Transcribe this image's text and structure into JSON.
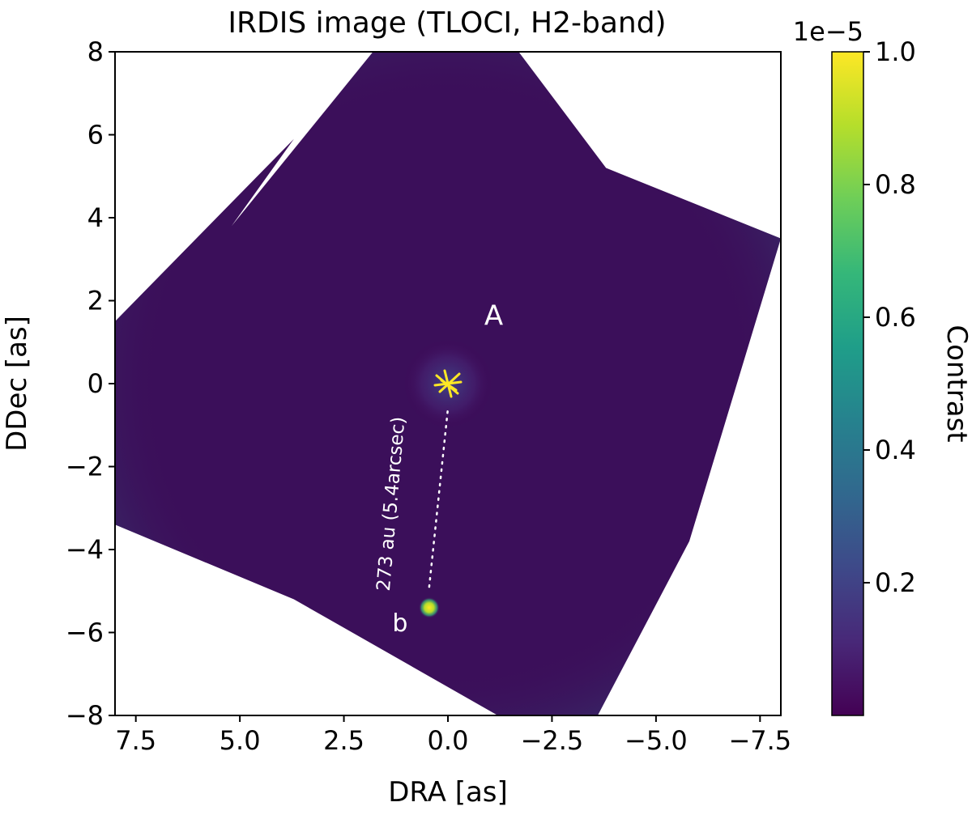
{
  "chart_data": {
    "type": "heatmap",
    "title": "IRDIS image (TLOCI, H2-band)",
    "xlabel": "DRA [as]",
    "ylabel": "DDec [as]",
    "xlim": [
      8,
      -8
    ],
    "ylim": [
      -8,
      8
    ],
    "x_ticks": [
      7.5,
      5.0,
      2.5,
      0.0,
      -2.5,
      -5.0,
      -7.5
    ],
    "x_tick_labels": [
      "7.5",
      "5.0",
      "2.5",
      "0.0",
      "−2.5",
      "−5.0",
      "−7.5"
    ],
    "y_ticks": [
      8,
      6,
      4,
      2,
      0,
      -2,
      -4,
      -6,
      -8
    ],
    "y_tick_labels": [
      "8",
      "6",
      "4",
      "2",
      "0",
      "−2",
      "−4",
      "−6",
      "−8"
    ],
    "field_outline": [
      [
        8,
        1.5
      ],
      [
        3.7,
        5.9
      ],
      [
        5.2,
        3.8
      ],
      [
        1.8,
        8
      ],
      [
        -1.7,
        8
      ],
      [
        -3.8,
        5.2
      ],
      [
        -8,
        3.5
      ],
      [
        -5.8,
        -3.8
      ],
      [
        -3.6,
        -8
      ],
      [
        -1.2,
        -8
      ],
      [
        3.7,
        -5.2
      ],
      [
        8,
        -3.4
      ]
    ],
    "colormap": "viridis",
    "colorbar": {
      "label": "Contrast",
      "scale_label": "1e−5",
      "range": [
        0.0,
        1.0
      ],
      "ticks": [
        1.0,
        0.8,
        0.6,
        0.4,
        0.2
      ],
      "tick_labels": [
        "1.0",
        "0.8",
        "0.6",
        "0.4",
        "0.2"
      ],
      "colors": [
        "#440154",
        "#482878",
        "#3e4989",
        "#31688e",
        "#26828e",
        "#1f9e89",
        "#35b779",
        "#6ece58",
        "#b5de2b",
        "#fde725"
      ]
    },
    "sources": [
      {
        "name": "A",
        "label": "A",
        "x": 0.0,
        "y": 0.0,
        "label_x": -1.1,
        "label_y": 1.6
      },
      {
        "name": "b",
        "label": "b",
        "x": 0.45,
        "y": -5.4,
        "label_x": 1.15,
        "label_y": -5.8
      }
    ],
    "separation_annotation": {
      "text": "273 au (5.4arcsec)",
      "from": [
        0.45,
        -4.9
      ],
      "to": [
        0.0,
        -0.6
      ],
      "text_x": 1.35,
      "text_y": -2.9
    }
  }
}
